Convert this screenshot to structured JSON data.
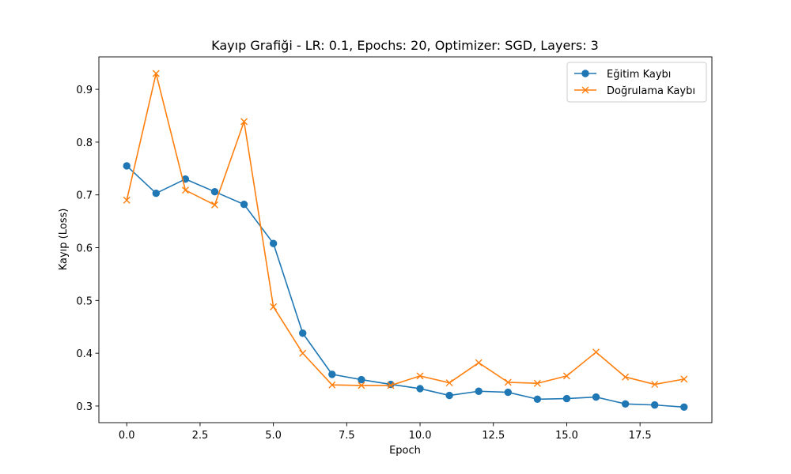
{
  "chart_data": {
    "type": "line",
    "title": "Kayıp Grafiği - LR: 0.1, Epochs: 20, Optimizer: SGD, Layers: 3",
    "xlabel": "Epoch",
    "ylabel": "Kayıp (Loss)",
    "xlim": [
      -0.95,
      19.95
    ],
    "ylim": [
      0.2685,
      0.9615
    ],
    "xticks": [
      0.0,
      2.5,
      5.0,
      7.5,
      10.0,
      12.5,
      15.0,
      17.5
    ],
    "xtick_labels": [
      "0.0",
      "2.5",
      "5.0",
      "7.5",
      "10.0",
      "12.5",
      "15.0",
      "17.5"
    ],
    "yticks": [
      0.3,
      0.4,
      0.5,
      0.6,
      0.7,
      0.8,
      0.9
    ],
    "ytick_labels": [
      "0.3",
      "0.4",
      "0.5",
      "0.6",
      "0.7",
      "0.8",
      "0.9"
    ],
    "grid": false,
    "legend_position": "top-right",
    "x": [
      0,
      1,
      2,
      3,
      4,
      5,
      6,
      7,
      8,
      9,
      10,
      11,
      12,
      13,
      14,
      15,
      16,
      17,
      18,
      19
    ],
    "series": [
      {
        "name": "Eğitim Kaybı",
        "color": "#1f77b4",
        "marker": "circle",
        "values": [
          0.755,
          0.703,
          0.73,
          0.706,
          0.682,
          0.608,
          0.438,
          0.36,
          0.35,
          0.341,
          0.333,
          0.32,
          0.328,
          0.326,
          0.313,
          0.314,
          0.317,
          0.304,
          0.302,
          0.298
        ]
      },
      {
        "name": "Doğrulama Kaybı",
        "color": "#ff7f0e",
        "marker": "x",
        "values": [
          0.69,
          0.93,
          0.709,
          0.681,
          0.839,
          0.488,
          0.4,
          0.34,
          0.339,
          0.339,
          0.357,
          0.344,
          0.382,
          0.345,
          0.343,
          0.357,
          0.402,
          0.355,
          0.341,
          0.351
        ]
      }
    ]
  }
}
